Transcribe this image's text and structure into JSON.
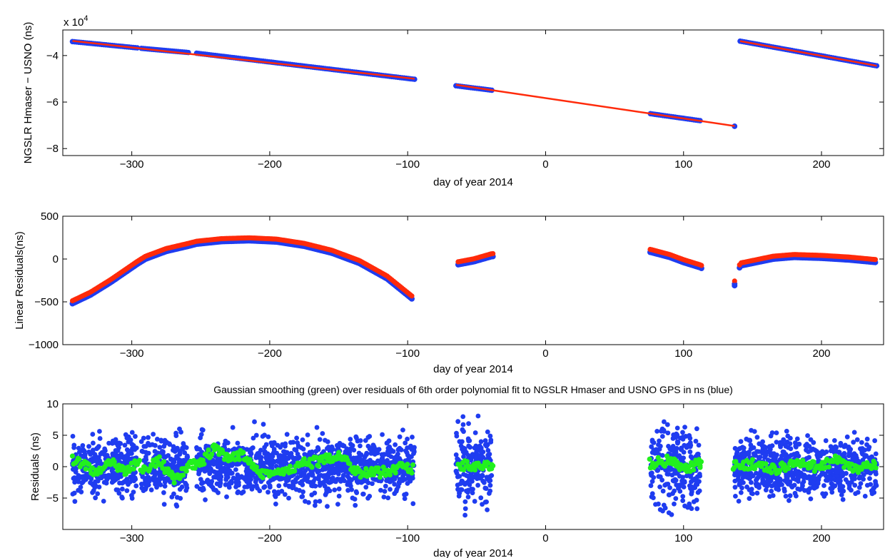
{
  "chart_data": [
    {
      "type": "scatter",
      "title": "",
      "xlabel": "day of year 2014",
      "ylabel": "NGSLR Hmaser − USNO (ns)",
      "y_multiplier_label": "x 10",
      "y_multiplier_exponent": "4",
      "xlim": [
        -350,
        245
      ],
      "ylim": [
        -8.3,
        -2.9
      ],
      "x_ticks": [
        -300,
        -200,
        -100,
        0,
        100,
        200
      ],
      "x_tick_labels": [
        "−300",
        "−200",
        "−100",
        "0",
        "100",
        "200"
      ],
      "y_ticks": [
        -8,
        -6,
        -4
      ],
      "y_tick_labels": [
        "−8",
        "−6",
        "−4"
      ],
      "colors": {
        "data": "#1f3cf0",
        "fit": "#ff2a0a"
      },
      "segments": [
        {
          "x": [
            -343,
            -296
          ],
          "y": [
            -3.4,
            -3.67
          ]
        },
        {
          "x": [
            -293,
            -259
          ],
          "y": [
            -3.69,
            -3.87
          ]
        },
        {
          "x": [
            -253,
            -95
          ],
          "y": [
            -3.9,
            -5.02
          ]
        },
        {
          "x": [
            -65,
            -39
          ],
          "y": [
            -5.3,
            -5.49
          ]
        },
        {
          "x": [
            76,
            112
          ],
          "y": [
            -6.5,
            -6.8
          ]
        },
        {
          "x": [
            137,
            137
          ],
          "y": [
            -7.04,
            -7.04
          ]
        },
        {
          "x": [
            141,
            240
          ],
          "y": [
            -3.38,
            -4.44
          ]
        }
      ],
      "fit_lines": [
        {
          "x": [
            -343,
            -95
          ],
          "y": [
            -3.37,
            -5.0
          ]
        },
        {
          "x": [
            -65,
            137
          ],
          "y": [
            -5.26,
            -7.03
          ]
        },
        {
          "x": [
            141,
            240
          ],
          "y": [
            -3.38,
            -4.44
          ]
        }
      ]
    },
    {
      "type": "scatter",
      "title": "",
      "xlabel": "day of year 2014",
      "ylabel": "Linear Residuals(ns)",
      "xlim": [
        -350,
        245
      ],
      "ylim": [
        -1000,
        500
      ],
      "x_ticks": [
        -300,
        -200,
        -100,
        0,
        100,
        200
      ],
      "x_tick_labels": [
        "−300",
        "−200",
        "−100",
        "0",
        "100",
        "200"
      ],
      "y_ticks": [
        -1000,
        -500,
        0,
        500
      ],
      "y_tick_labels": [
        "−1000",
        "−500",
        "0",
        "500"
      ],
      "colors": {
        "data": "#1f3cf0",
        "fit": "#ff2a0a"
      },
      "curve_points": [
        {
          "x": -343,
          "y": -500
        },
        {
          "x": -330,
          "y": -400
        },
        {
          "x": -315,
          "y": -250
        },
        {
          "x": -296,
          "y": -40
        },
        {
          "x": -290,
          "y": 20
        },
        {
          "x": -275,
          "y": 110
        },
        {
          "x": -259,
          "y": 170
        },
        {
          "x": -253,
          "y": 195
        },
        {
          "x": -235,
          "y": 225
        },
        {
          "x": -215,
          "y": 235
        },
        {
          "x": -195,
          "y": 220
        },
        {
          "x": -175,
          "y": 170
        },
        {
          "x": -155,
          "y": 90
        },
        {
          "x": -135,
          "y": -30
        },
        {
          "x": -115,
          "y": -210
        },
        {
          "x": -95,
          "y": -470
        },
        {
          "x": -65,
          "y": -50
        },
        {
          "x": -52,
          "y": -10
        },
        {
          "x": -39,
          "y": 50
        },
        {
          "x": 76,
          "y": 100
        },
        {
          "x": 90,
          "y": 40
        },
        {
          "x": 100,
          "y": -20
        },
        {
          "x": 112,
          "y": -80
        },
        {
          "x": 137,
          "y": -270
        },
        {
          "x": 141,
          "y": -60
        },
        {
          "x": 150,
          "y": -30
        },
        {
          "x": 165,
          "y": 20
        },
        {
          "x": 180,
          "y": 40
        },
        {
          "x": 200,
          "y": 30
        },
        {
          "x": 220,
          "y": 10
        },
        {
          "x": 240,
          "y": -20
        }
      ]
    },
    {
      "type": "scatter",
      "title": "Gaussian smoothing (green) over residuals of 6th order polynomial fit to NGSLR Hmaser and USNO GPS in ns (blue)",
      "xlabel": "day of year 2014",
      "ylabel": "Residuals (ns)",
      "xlim": [
        -350,
        245
      ],
      "ylim": [
        -10,
        10
      ],
      "x_ticks": [
        -300,
        -200,
        -100,
        0,
        100,
        200
      ],
      "x_tick_labels": [
        "−300",
        "−200",
        "−100",
        "0",
        "100",
        "200"
      ],
      "y_ticks": [
        -5,
        0,
        5,
        10
      ],
      "y_tick_labels": [
        "−5",
        "0",
        "5",
        "10"
      ],
      "colors": {
        "data": "#1f3cf0",
        "smooth": "#22f01e"
      },
      "segments": [
        {
          "x": [
            -343,
            -296
          ],
          "spread": 4.5
        },
        {
          "x": [
            -293,
            -259
          ],
          "spread": 5.5
        },
        {
          "x": [
            -253,
            -95
          ],
          "spread": 5.0
        },
        {
          "x": [
            -65,
            -39
          ],
          "spread": 6.5
        },
        {
          "x": [
            76,
            112
          ],
          "spread": 7.5
        },
        {
          "x": [
            137,
            240
          ],
          "spread": 5.0
        }
      ],
      "smooth_points": [
        {
          "x": -343,
          "y": 1
        },
        {
          "x": -335,
          "y": 0.5
        },
        {
          "x": -325,
          "y": -1
        },
        {
          "x": -315,
          "y": 0.5
        },
        {
          "x": -305,
          "y": -0.5
        },
        {
          "x": -296,
          "y": 0.5
        },
        {
          "x": -290,
          "y": -0.5
        },
        {
          "x": -280,
          "y": 1
        },
        {
          "x": -270,
          "y": -2
        },
        {
          "x": -259,
          "y": 0
        },
        {
          "x": -250,
          "y": 0.5
        },
        {
          "x": -240,
          "y": 3
        },
        {
          "x": -230,
          "y": 1
        },
        {
          "x": -220,
          "y": 2
        },
        {
          "x": -205,
          "y": -1
        },
        {
          "x": -190,
          "y": -1
        },
        {
          "x": -175,
          "y": 0.5
        },
        {
          "x": -160,
          "y": 1
        },
        {
          "x": -150,
          "y": 2
        },
        {
          "x": -135,
          "y": -1
        },
        {
          "x": -120,
          "y": -1
        },
        {
          "x": -105,
          "y": 0
        },
        {
          "x": -95,
          "y": -0.5
        },
        {
          "x": -65,
          "y": 0.5
        },
        {
          "x": -52,
          "y": 0
        },
        {
          "x": -39,
          "y": 0
        },
        {
          "x": 76,
          "y": 0.5
        },
        {
          "x": 90,
          "y": 1
        },
        {
          "x": 100,
          "y": -0.5
        },
        {
          "x": 112,
          "y": 0.5
        },
        {
          "x": 137,
          "y": 0
        },
        {
          "x": 150,
          "y": 0.5
        },
        {
          "x": 165,
          "y": -0.5
        },
        {
          "x": 180,
          "y": 0.5
        },
        {
          "x": 195,
          "y": 0
        },
        {
          "x": 210,
          "y": 1
        },
        {
          "x": 225,
          "y": -0.5
        },
        {
          "x": 240,
          "y": 0.5
        }
      ]
    }
  ]
}
